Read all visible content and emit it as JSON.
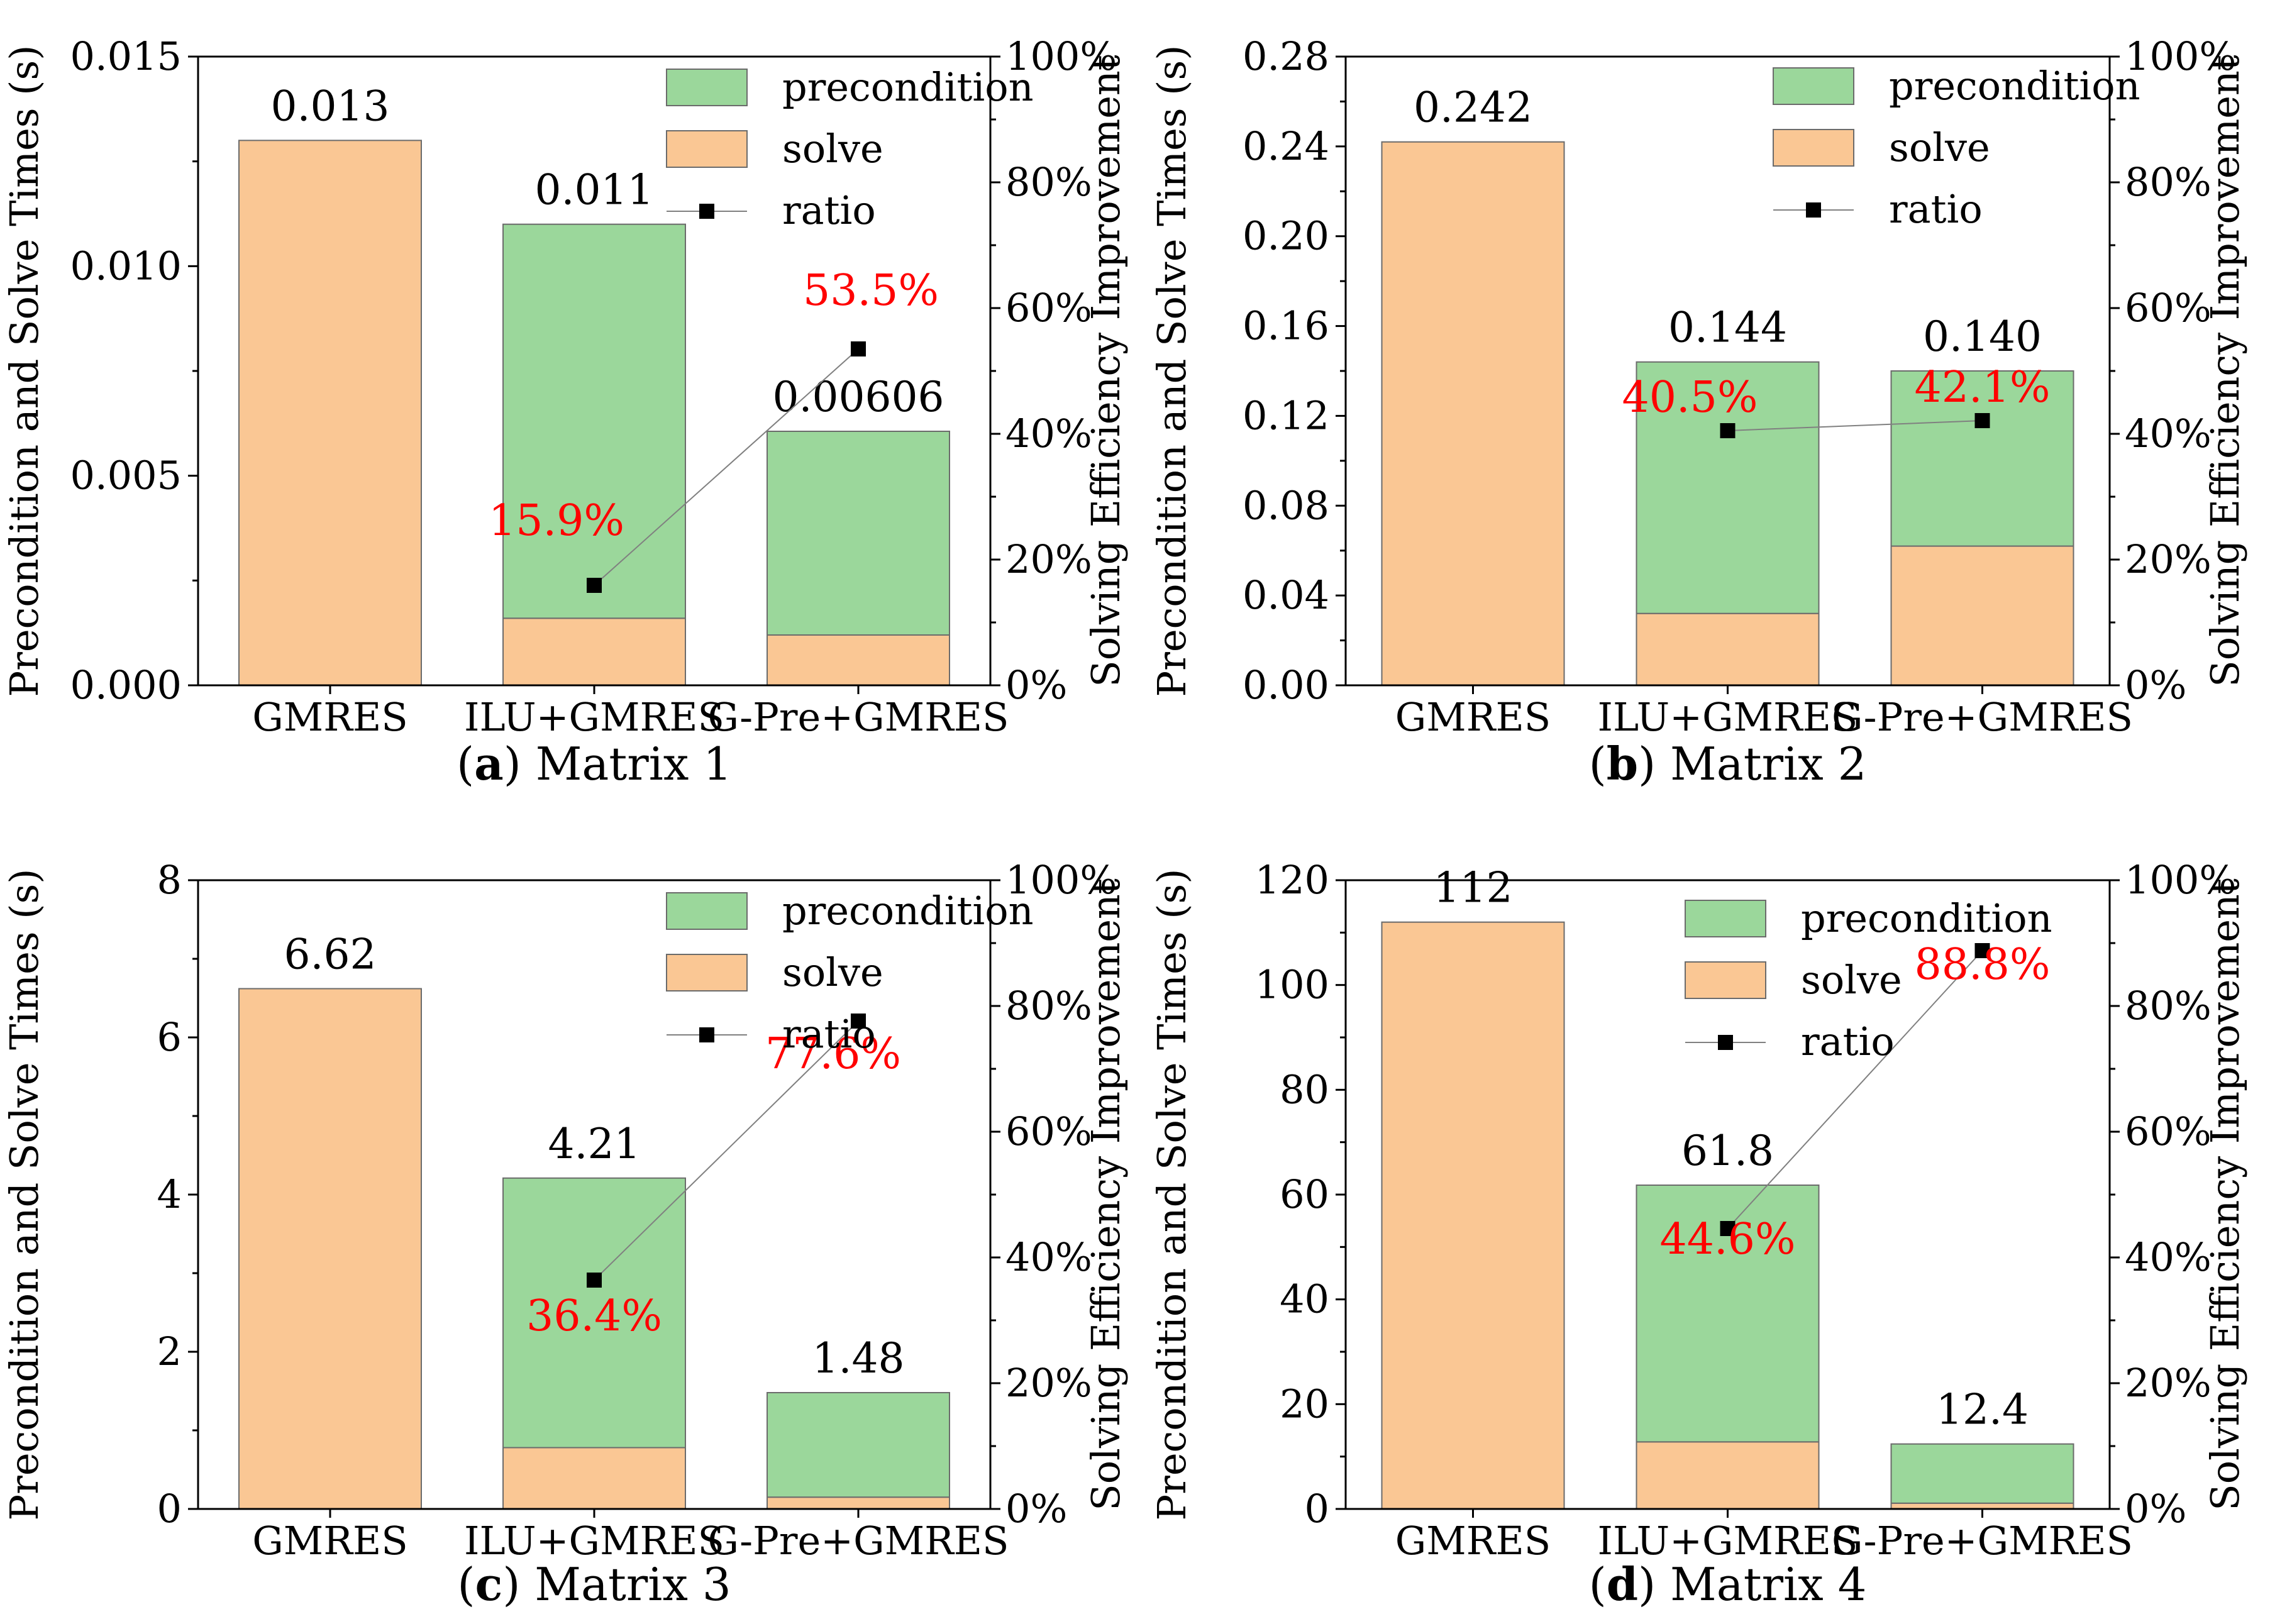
{
  "colors": {
    "precondition": "#9bd79b",
    "solve": "#fac794",
    "ratio": "#000000",
    "ratio_label": "#ff0000",
    "bar_edge": "#6b6b6b"
  },
  "chart_data": [
    {
      "type": "bar",
      "stacked": true,
      "caption_letter": "a",
      "caption_text": "Matrix 1",
      "categories": [
        "GMRES",
        "ILU+GMRES",
        "G-Pre+GMRES"
      ],
      "series": [
        {
          "name": "precondition",
          "values": [
            0,
            0.0094,
            0.00486
          ]
        },
        {
          "name": "solve",
          "values": [
            0.013,
            0.0016,
            0.0012
          ]
        }
      ],
      "totals": [
        0.013,
        0.011,
        0.00606
      ],
      "total_labels": [
        "0.013",
        "0.011",
        "0.00606"
      ],
      "ylabel": "Precondition and Solve Times (s)",
      "ylim": [
        0,
        0.015
      ],
      "yticks": [
        0,
        0.005,
        0.01,
        0.015
      ],
      "ytick_labels": [
        "0.000",
        "0.005",
        "0.010",
        "0.015"
      ],
      "y2label": "Solving Efficiency Improvement",
      "y2lim": [
        0,
        100
      ],
      "y2ticks": [
        0,
        20,
        40,
        60,
        80,
        100
      ],
      "y2tick_labels": [
        "0%",
        "20%",
        "40%",
        "60%",
        "80%",
        "100%"
      ],
      "ratio": {
        "name": "ratio",
        "categories": [
          "ILU+GMRES",
          "G-Pre+GMRES"
        ],
        "values": [
          15.9,
          53.5
        ],
        "labels": [
          "15.9%",
          "53.5%"
        ]
      },
      "legend": {
        "position": "top-right",
        "entries": [
          "precondition",
          "solve",
          "ratio"
        ]
      }
    },
    {
      "type": "bar",
      "stacked": true,
      "caption_letter": "b",
      "caption_text": "Matrix 2",
      "categories": [
        "GMRES",
        "ILU+GMRES",
        "G-Pre+GMRES"
      ],
      "series": [
        {
          "name": "precondition",
          "values": [
            0,
            0.112,
            0.078
          ]
        },
        {
          "name": "solve",
          "values": [
            0.242,
            0.032,
            0.062
          ]
        }
      ],
      "totals": [
        0.242,
        0.144,
        0.14
      ],
      "total_labels": [
        "0.242",
        "0.144",
        "0.140"
      ],
      "ylabel": "Precondition and Solve Times (s)",
      "ylim": [
        0,
        0.28
      ],
      "yticks": [
        0,
        0.04,
        0.08,
        0.12,
        0.16,
        0.2,
        0.24,
        0.28
      ],
      "ytick_labels": [
        "0.00",
        "0.04",
        "0.08",
        "0.12",
        "0.16",
        "0.20",
        "0.24",
        "0.28"
      ],
      "y2label": "Solving Efficiency Improvement",
      "y2lim": [
        0,
        100
      ],
      "y2ticks": [
        0,
        20,
        40,
        60,
        80,
        100
      ],
      "y2tick_labels": [
        "0%",
        "20%",
        "40%",
        "60%",
        "80%",
        "100%"
      ],
      "ratio": {
        "name": "ratio",
        "categories": [
          "ILU+GMRES",
          "G-Pre+GMRES"
        ],
        "values": [
          40.5,
          42.1
        ],
        "labels": [
          "40.5%",
          "42.1%"
        ]
      },
      "legend": {
        "position": "top-right",
        "entries": [
          "precondition",
          "solve",
          "ratio"
        ]
      }
    },
    {
      "type": "bar",
      "stacked": true,
      "caption_letter": "c",
      "caption_text": "Matrix 3",
      "categories": [
        "GMRES",
        "ILU+GMRES",
        "G-Pre+GMRES"
      ],
      "series": [
        {
          "name": "precondition",
          "values": [
            0,
            3.43,
            1.33
          ]
        },
        {
          "name": "solve",
          "values": [
            6.62,
            0.78,
            0.15
          ]
        }
      ],
      "totals": [
        6.62,
        4.21,
        1.48
      ],
      "total_labels": [
        "6.62",
        "4.21",
        "1.48"
      ],
      "ylabel": "Precondition and Solve Times (s)",
      "ylim": [
        0,
        8
      ],
      "yticks": [
        0,
        2,
        4,
        6,
        8
      ],
      "ytick_labels": [
        "0",
        "2",
        "4",
        "6",
        "8"
      ],
      "y2label": "Solving Efficiency Improvement",
      "y2lim": [
        0,
        100
      ],
      "y2ticks": [
        0,
        20,
        40,
        60,
        80,
        100
      ],
      "y2tick_labels": [
        "0%",
        "20%",
        "40%",
        "60%",
        "80%",
        "100%"
      ],
      "ratio": {
        "name": "ratio",
        "categories": [
          "ILU+GMRES",
          "G-Pre+GMRES"
        ],
        "values": [
          36.4,
          77.6
        ],
        "labels": [
          "36.4%",
          "77.6%"
        ]
      },
      "legend": {
        "position": "top-right",
        "entries": [
          "precondition",
          "solve",
          "ratio"
        ]
      }
    },
    {
      "type": "bar",
      "stacked": true,
      "caption_letter": "d",
      "caption_text": "Matrix 4",
      "categories": [
        "GMRES",
        "ILU+GMRES",
        "G-Pre+GMRES"
      ],
      "series": [
        {
          "name": "precondition",
          "values": [
            0,
            49.0,
            11.3
          ]
        },
        {
          "name": "solve",
          "values": [
            112,
            12.8,
            1.1
          ]
        }
      ],
      "totals": [
        112,
        61.8,
        12.4
      ],
      "total_labels": [
        "112",
        "61.8",
        "12.4"
      ],
      "ylabel": "Precondition and Solve Times (s)",
      "ylim": [
        0,
        120
      ],
      "yticks": [
        0,
        20,
        40,
        60,
        80,
        100,
        120
      ],
      "ytick_labels": [
        "0",
        "20",
        "40",
        "60",
        "80",
        "100",
        "120"
      ],
      "y2label": "Solving Efficiency Improvement",
      "y2lim": [
        0,
        100
      ],
      "y2ticks": [
        0,
        20,
        40,
        60,
        80,
        100
      ],
      "y2tick_labels": [
        "0%",
        "20%",
        "40%",
        "60%",
        "80%",
        "100%"
      ],
      "ratio": {
        "name": "ratio",
        "categories": [
          "ILU+GMRES",
          "G-Pre+GMRES"
        ],
        "values": [
          44.6,
          88.8
        ],
        "labels": [
          "44.6%",
          "88.8%"
        ]
      },
      "legend": {
        "position": "top-right",
        "entries": [
          "precondition",
          "solve",
          "ratio"
        ]
      }
    }
  ]
}
